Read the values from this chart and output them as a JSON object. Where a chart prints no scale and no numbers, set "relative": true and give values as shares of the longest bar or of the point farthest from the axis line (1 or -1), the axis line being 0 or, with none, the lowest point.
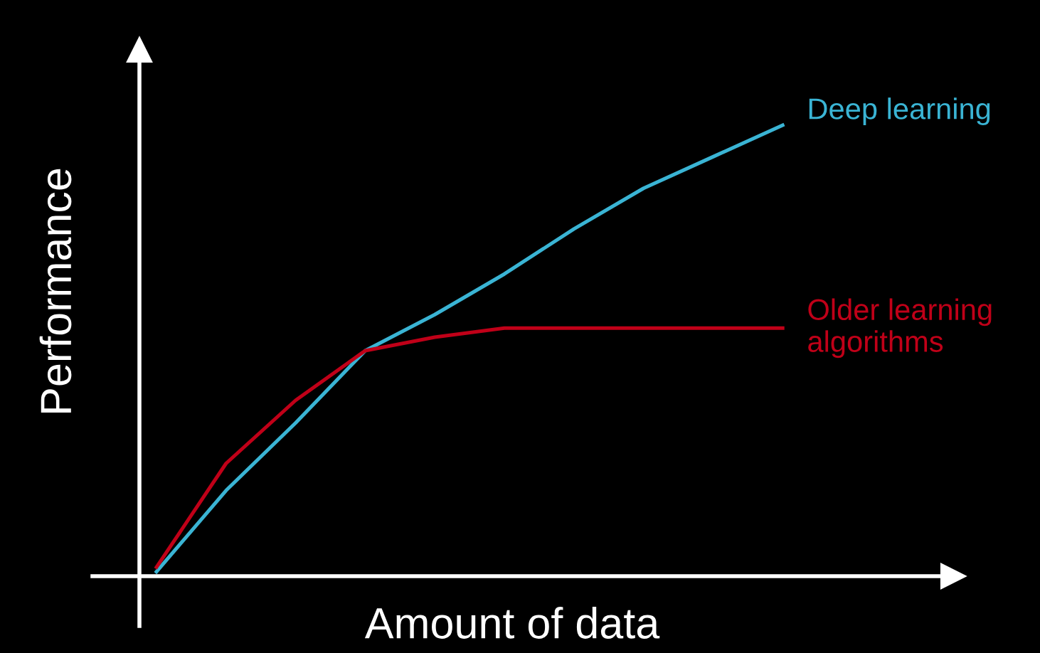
{
  "chart_data": {
    "type": "line",
    "relative": true,
    "xlabel": "Amount of data",
    "ylabel": "Performance",
    "categories": [
      null,
      null,
      null,
      null,
      null,
      null,
      null,
      null,
      null,
      null
    ],
    "series": [
      {
        "name": "Deep learning",
        "color": "#3ab4d4",
        "values": [
          0.01,
          0.19,
          0.34,
          0.5,
          0.58,
          0.67,
          0.77,
          0.86,
          0.93,
          1.0
        ]
      },
      {
        "name": "Older learning\nalgorithms",
        "color": "#c00018",
        "values": [
          0.02,
          0.25,
          0.39,
          0.5,
          0.53,
          0.55,
          0.55,
          0.55,
          0.55,
          0.55
        ]
      }
    ],
    "legend": false,
    "marker": "none",
    "line_style": "solid"
  }
}
